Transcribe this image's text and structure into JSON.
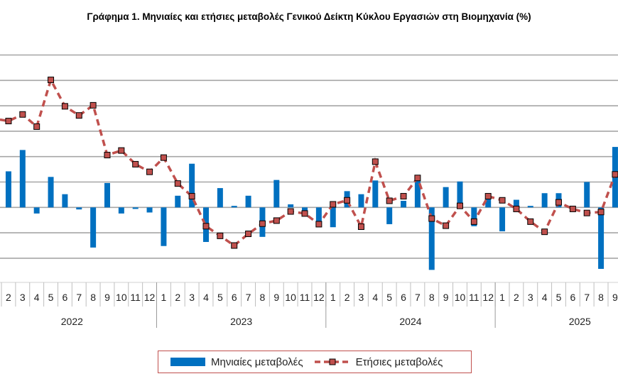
{
  "chart_data": {
    "type": "bar+line",
    "title": "Γράφημα 1.  Μηνιαίες και ετήσιες μεταβολές  Γενικού Δείκτη Κύκλου Εργασιών στη Βιομηχανία  (%)",
    "xlabel": "",
    "ylabel": "",
    "ylim": [
      -15,
      30
    ],
    "y_grid_step": 5,
    "grid": true,
    "legend_position": "bottom",
    "years": [
      "2022",
      "2023",
      "2024",
      "2025"
    ],
    "categories": [
      "2",
      "3",
      "4",
      "5",
      "6",
      "7",
      "8",
      "9",
      "10",
      "11",
      "12",
      "1",
      "2",
      "3",
      "4",
      "5",
      "6",
      "7",
      "8",
      "9",
      "10",
      "11",
      "12",
      "1",
      "2",
      "3",
      "4",
      "5",
      "6",
      "7",
      "8",
      "9",
      "10",
      "11",
      "12",
      "1",
      "2",
      "3",
      "4",
      "5",
      "6",
      "7",
      "8",
      "9"
    ],
    "category_years": [
      "2022",
      "2022",
      "2022",
      "2022",
      "2022",
      "2022",
      "2022",
      "2022",
      "2022",
      "2022",
      "2022",
      "2023",
      "2023",
      "2023",
      "2023",
      "2023",
      "2023",
      "2023",
      "2023",
      "2023",
      "2023",
      "2023",
      "2023",
      "2024",
      "2024",
      "2024",
      "2024",
      "2024",
      "2024",
      "2024",
      "2024",
      "2024",
      "2024",
      "2024",
      "2024",
      "2025",
      "2025",
      "2025",
      "2025",
      "2025",
      "2025",
      "2025",
      "2025",
      "2025"
    ],
    "series": [
      {
        "name": "Μηνιαίες μεταβολές",
        "type": "bar",
        "color": "#0070c0",
        "values": [
          7.1,
          11.3,
          -1.2,
          6.0,
          2.6,
          -0.4,
          -7.9,
          4.8,
          -1.2,
          -0.3,
          -1.0,
          -7.6,
          2.3,
          8.6,
          -6.8,
          3.8,
          0.3,
          2.3,
          -5.8,
          5.4,
          0.6,
          -1.3,
          -2.9,
          -3.9,
          3.2,
          2.6,
          5.3,
          -3.3,
          1.3,
          5.5,
          -12.3,
          4.0,
          5.1,
          -3.7,
          2.0,
          -4.7,
          1.5,
          0.3,
          2.8,
          2.8,
          0.0,
          5.0,
          -12.1,
          11.9
        ]
      },
      {
        "name": "Ετήσιες μεταβολές",
        "type": "line",
        "color": "#c0504d",
        "values": [
          17.0,
          18.3,
          15.9,
          25.1,
          19.9,
          18.1,
          20.1,
          10.3,
          11.2,
          8.5,
          7.0,
          9.8,
          4.7,
          2.2,
          -3.7,
          -5.6,
          -7.5,
          -5.2,
          -3.2,
          -2.6,
          -0.8,
          -1.2,
          -3.3,
          0.6,
          1.4,
          -3.8,
          9.0,
          1.3,
          2.2,
          5.8,
          -2.2,
          -3.6,
          0.3,
          -2.8,
          2.2,
          1.4,
          -0.3,
          -2.8,
          -4.8,
          1.0,
          -0.3,
          -1.1,
          -0.9,
          6.5
        ]
      }
    ]
  }
}
